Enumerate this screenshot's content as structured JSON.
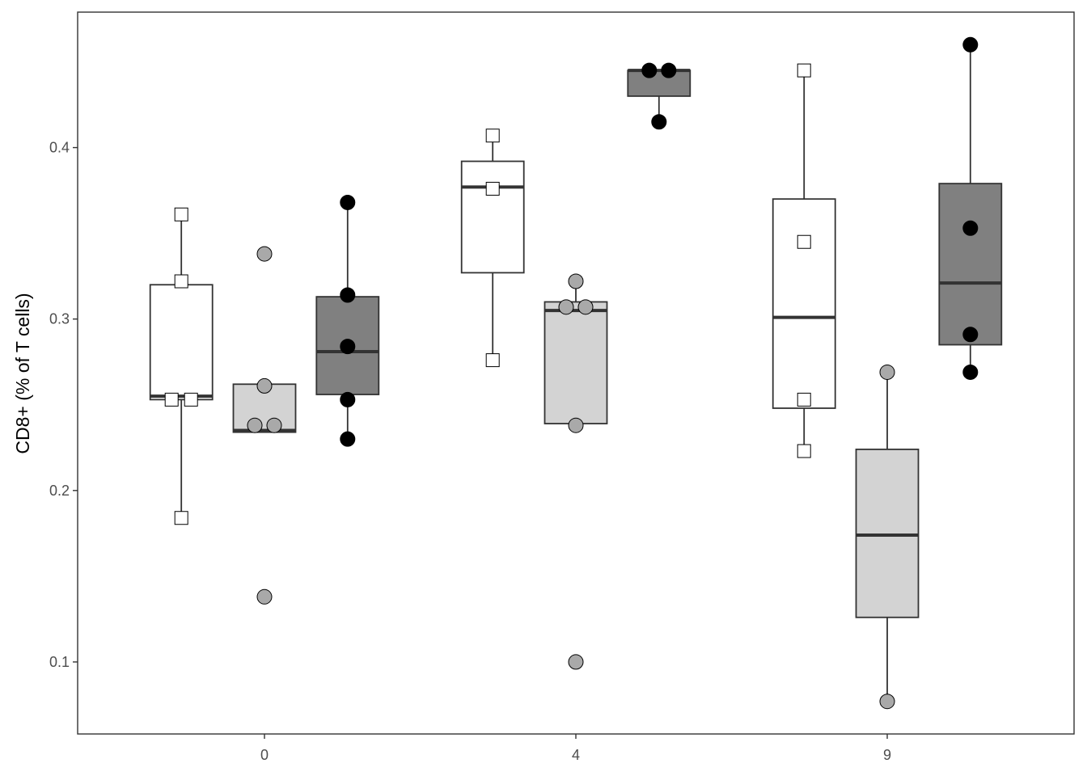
{
  "chart_data": {
    "type": "box",
    "title": "",
    "xlabel": "",
    "ylabel": "CD8+ (% of T cells)",
    "categories": [
      "0",
      "4",
      "9"
    ],
    "ylim": [
      0.058,
      0.479
    ],
    "y_ticks": [
      0.1,
      0.2,
      0.3,
      0.4
    ],
    "y_tick_labels": [
      "0.1",
      "0.2",
      "0.3",
      "0.4"
    ],
    "grid": false,
    "legend": "none",
    "series": [
      {
        "fill": "#ffffff",
        "point_shape": "square",
        "point_fill": "#ffffff",
        "boxes": [
          {
            "category": "0",
            "q1": 0.253,
            "median": 0.255,
            "q3": 0.32,
            "whisker_low": 0.184,
            "whisker_high": 0.361,
            "points": [
              0.361,
              0.322,
              0.253,
              0.253,
              0.184
            ]
          },
          {
            "category": "4",
            "q1": 0.327,
            "median": 0.377,
            "q3": 0.392,
            "whisker_low": 0.276,
            "whisker_high": 0.407,
            "points": [
              0.407,
              0.376,
              0.276
            ]
          },
          {
            "category": "9",
            "q1": 0.248,
            "median": 0.301,
            "q3": 0.37,
            "whisker_low": 0.223,
            "whisker_high": 0.445,
            "points": [
              0.445,
              0.345,
              0.253,
              0.223
            ]
          }
        ]
      },
      {
        "fill": "#d3d3d3",
        "point_shape": "circle",
        "point_fill": "#a9a9a9",
        "boxes": [
          {
            "category": "0",
            "q1": 0.234,
            "median": 0.235,
            "q3": 0.262,
            "whisker_low": 0.234,
            "whisker_high": 0.262,
            "points": [
              0.338,
              0.261,
              0.238,
              0.238,
              0.138
            ]
          },
          {
            "category": "4",
            "q1": 0.239,
            "median": 0.305,
            "q3": 0.31,
            "whisker_low": 0.239,
            "whisker_high": 0.322,
            "points": [
              0.322,
              0.307,
              0.307,
              0.238,
              0.1
            ]
          },
          {
            "category": "9",
            "q1": 0.126,
            "median": 0.174,
            "q3": 0.224,
            "whisker_low": 0.077,
            "whisker_high": 0.269,
            "points": [
              0.269,
              0.077
            ]
          }
        ]
      },
      {
        "fill": "#808080",
        "point_shape": "circle",
        "point_fill": "#000000",
        "boxes": [
          {
            "category": "0",
            "q1": 0.256,
            "median": 0.281,
            "q3": 0.313,
            "whisker_low": 0.23,
            "whisker_high": 0.368,
            "points": [
              0.368,
              0.314,
              0.284,
              0.253,
              0.23
            ]
          },
          {
            "category": "4",
            "q1": 0.43,
            "median": 0.445,
            "q3": 0.445,
            "whisker_low": 0.415,
            "whisker_high": 0.445,
            "points": [
              0.445,
              0.445,
              0.415
            ]
          },
          {
            "category": "9",
            "q1": 0.285,
            "median": 0.321,
            "q3": 0.379,
            "whisker_low": 0.269,
            "whisker_high": 0.46,
            "points": [
              0.46,
              0.353,
              0.291,
              0.269
            ]
          }
        ]
      }
    ]
  }
}
